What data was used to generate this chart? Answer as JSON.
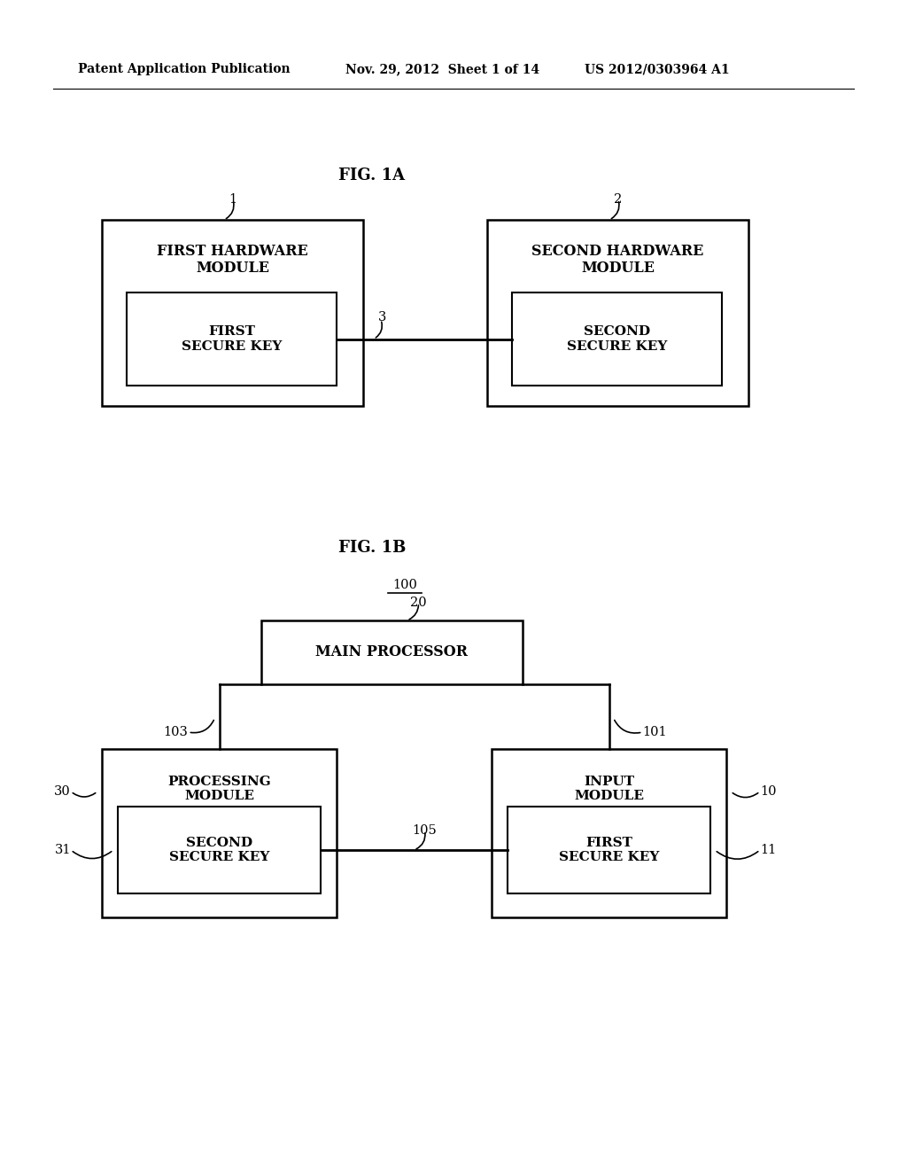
{
  "bg_color": "#ffffff",
  "header_left": "Patent Application Publication",
  "header_mid": "Nov. 29, 2012  Sheet 1 of 14",
  "header_right": "US 2012/0303964 A1",
  "fig1a_title": "FIG. 1A",
  "fig1b_title": "FIG. 1B",
  "fig1a": {
    "box1_label": "FIRST HARDWARE\nMODULE",
    "box2_label": "SECOND HARDWARE\nMODULE",
    "inner1_label": "FIRST\nSECURE KEY",
    "inner2_label": "SECOND\nSECURE KEY",
    "ref1": "1",
    "ref2": "2",
    "ref3": "3"
  },
  "fig1b": {
    "main_proc_label": "MAIN PROCESSOR",
    "proc_module_label": "PROCESSING\nMODULE",
    "input_module_label": "INPUT\nMODULE",
    "inner_proc_label": "SECOND\nSECURE KEY",
    "inner_input_label": "FIRST\nSECURE KEY",
    "ref100": "100",
    "ref20": "20",
    "ref30": "30",
    "ref31": "31",
    "ref10": "10",
    "ref11": "11",
    "ref101": "101",
    "ref103": "103",
    "ref105": "105"
  }
}
